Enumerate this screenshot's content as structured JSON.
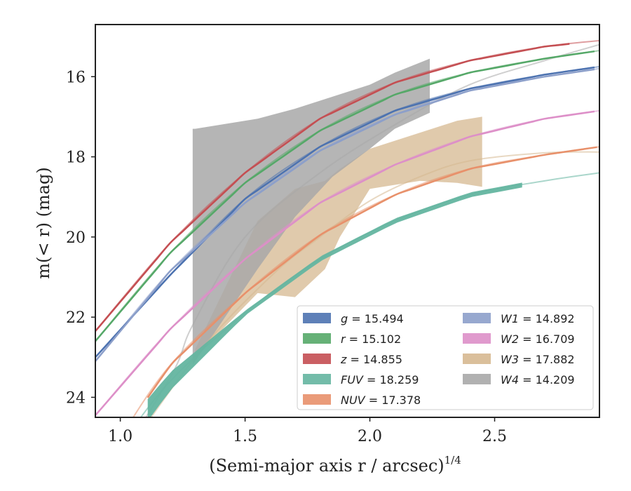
{
  "chart_data": {
    "type": "line",
    "xlabel": "(Semi-major axis r / arcsec)",
    "xlabel_sup": "1/4",
    "ylabel": "m(< r) (mag)",
    "xlim": [
      0.9,
      2.92
    ],
    "ylim": [
      24.5,
      14.7
    ],
    "y_inverted": true,
    "grid": false,
    "legend_position": "lower-right",
    "x_ticks": [
      {
        "value": 1.0,
        "label": "1.0"
      },
      {
        "value": 1.5,
        "label": "1.5"
      },
      {
        "value": 2.0,
        "label": "2.0"
      },
      {
        "value": 2.5,
        "label": "2.5"
      }
    ],
    "y_ticks": [
      {
        "value": 16,
        "label": "16"
      },
      {
        "value": 18,
        "label": "18"
      },
      {
        "value": 20,
        "label": "20"
      },
      {
        "value": 22,
        "label": "22"
      },
      {
        "value": 24,
        "label": "24"
      }
    ],
    "series": [
      {
        "name": "g",
        "label_value": "15.494",
        "color": "#4c72b0",
        "model": [
          [
            0.9,
            23.0
          ],
          [
            1.2,
            20.95
          ],
          [
            1.5,
            19.05
          ],
          [
            1.8,
            17.75
          ],
          [
            2.1,
            16.85
          ],
          [
            2.4,
            16.3
          ],
          [
            2.7,
            15.95
          ],
          [
            2.92,
            15.75
          ]
        ],
        "obs_range": [
          0.9,
          2.92
        ]
      },
      {
        "name": "r",
        "label_value": "15.102",
        "color": "#55a868",
        "model": [
          [
            0.9,
            22.6
          ],
          [
            1.2,
            20.4
          ],
          [
            1.5,
            18.65
          ],
          [
            1.8,
            17.35
          ],
          [
            2.1,
            16.45
          ],
          [
            2.4,
            15.9
          ],
          [
            2.7,
            15.55
          ],
          [
            2.92,
            15.35
          ]
        ],
        "obs_range": [
          0.9,
          2.92
        ]
      },
      {
        "name": "z",
        "label_value": "14.855",
        "color": "#c44e52",
        "model": [
          [
            0.9,
            22.35
          ],
          [
            1.2,
            20.15
          ],
          [
            1.5,
            18.4
          ],
          [
            1.8,
            17.05
          ],
          [
            2.1,
            16.15
          ],
          [
            2.4,
            15.6
          ],
          [
            2.7,
            15.25
          ],
          [
            2.92,
            15.1
          ]
        ],
        "obs_range": [
          0.9,
          2.8
        ]
      },
      {
        "name": "FUV",
        "label_value": "18.259",
        "color": "#64b5a0",
        "model": [
          [
            1.0,
            25.2
          ],
          [
            1.2,
            23.6
          ],
          [
            1.5,
            21.9
          ],
          [
            1.8,
            20.55
          ],
          [
            2.1,
            19.6
          ],
          [
            2.4,
            18.95
          ],
          [
            2.7,
            18.6
          ],
          [
            2.92,
            18.4
          ]
        ],
        "obs_range": [
          1.11,
          2.62
        ]
      },
      {
        "name": "NUV",
        "label_value": "17.378",
        "color": "#e8906a",
        "model": [
          [
            1.0,
            25.0
          ],
          [
            1.2,
            23.2
          ],
          [
            1.5,
            21.4
          ],
          [
            1.8,
            19.95
          ],
          [
            2.1,
            18.95
          ],
          [
            2.4,
            18.3
          ],
          [
            2.7,
            17.95
          ],
          [
            2.92,
            17.75
          ]
        ],
        "obs_range": [
          1.11,
          2.92
        ]
      },
      {
        "name": "W1",
        "label_value": "14.892",
        "color": "#8c9fca",
        "model": [
          [
            0.9,
            23.1
          ],
          [
            1.2,
            20.85
          ],
          [
            1.5,
            19.15
          ],
          [
            1.8,
            17.85
          ],
          [
            2.1,
            16.95
          ],
          [
            2.4,
            16.35
          ],
          [
            2.7,
            16.0
          ],
          [
            2.92,
            15.8
          ]
        ],
        "obs_range": [
          0.9,
          2.92
        ]
      },
      {
        "name": "W2",
        "label_value": "16.709",
        "color": "#dd8fc8",
        "model": [
          [
            0.9,
            24.45
          ],
          [
            1.2,
            22.3
          ],
          [
            1.5,
            20.55
          ],
          [
            1.8,
            19.15
          ],
          [
            2.1,
            18.2
          ],
          [
            2.4,
            17.5
          ],
          [
            2.7,
            17.05
          ],
          [
            2.92,
            16.85
          ]
        ],
        "obs_range": [
          0.9,
          2.92
        ]
      },
      {
        "name": "W3",
        "label_value": "17.882",
        "color": "#d6b890",
        "model": [
          [
            0.9,
            26.5
          ],
          [
            1.3,
            23.0
          ],
          [
            1.6,
            21.0
          ],
          [
            1.8,
            20.0
          ],
          [
            2.0,
            19.1
          ],
          [
            2.2,
            18.5
          ],
          [
            2.4,
            18.1
          ],
          [
            2.7,
            17.9
          ],
          [
            2.92,
            17.88
          ]
        ],
        "band": {
          "x": [
            1.3,
            1.55,
            1.7,
            1.82,
            1.88,
            2.0,
            2.2,
            2.35,
            2.45
          ],
          "upper": [
            23.0,
            21.4,
            21.5,
            20.8,
            20.0,
            18.8,
            18.6,
            18.65,
            18.75
          ],
          "lower": [
            22.8,
            19.6,
            18.8,
            18.6,
            18.3,
            17.8,
            17.4,
            17.1,
            17.0
          ]
        }
      },
      {
        "name": "W4",
        "label_value": "14.209",
        "color": "#a8a8a8",
        "model": [
          [
            0.9,
            26.5
          ],
          [
            1.2,
            23.5
          ],
          [
            1.29,
            22.2
          ],
          [
            1.5,
            20.0
          ],
          [
            1.8,
            18.4
          ],
          [
            2.1,
            17.2
          ],
          [
            2.4,
            16.2
          ],
          [
            2.7,
            15.6
          ],
          [
            2.92,
            15.2
          ]
        ],
        "band": {
          "x": [
            1.29,
            1.3,
            1.55,
            1.7,
            1.85,
            2.0,
            2.1,
            2.24
          ],
          "upper": [
            23.2,
            23.1,
            20.8,
            19.5,
            18.5,
            17.8,
            17.3,
            16.9
          ],
          "lower": [
            17.3,
            17.3,
            17.05,
            16.8,
            16.5,
            16.2,
            15.9,
            15.55
          ]
        }
      }
    ]
  }
}
